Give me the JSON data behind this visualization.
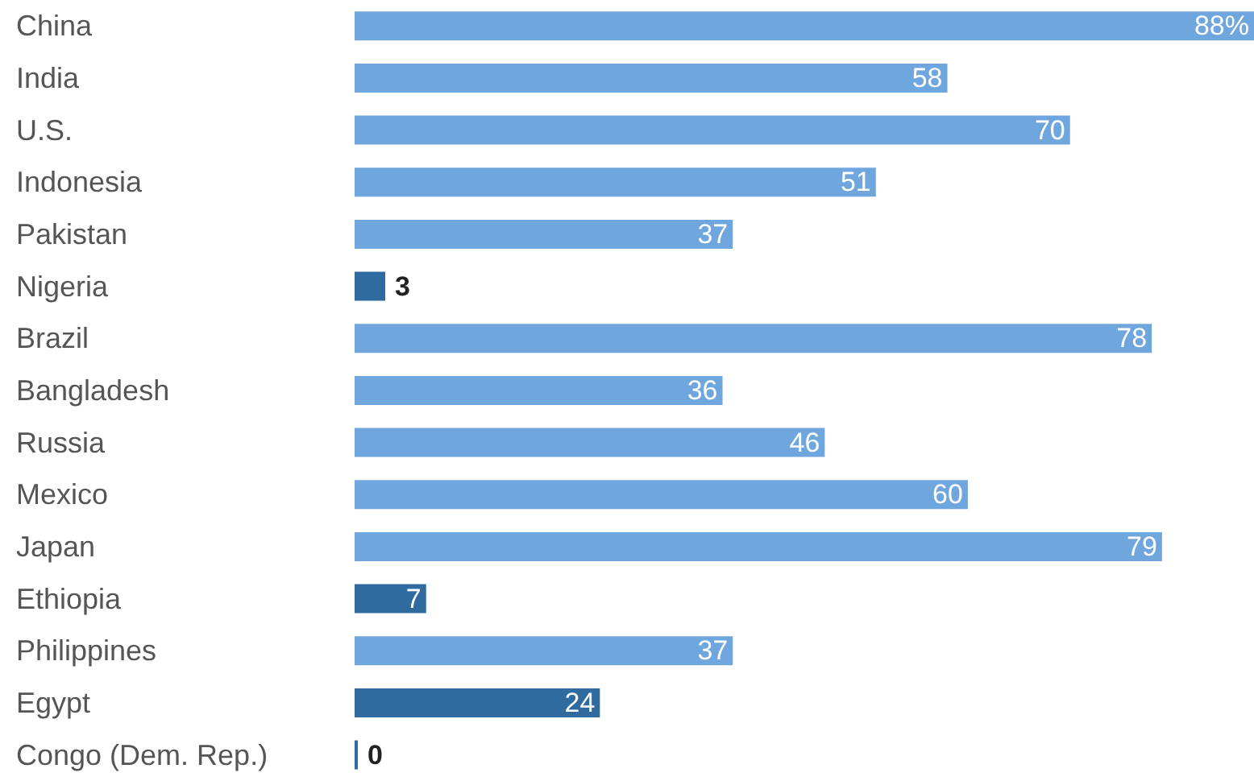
{
  "chart_data": {
    "type": "bar",
    "orientation": "horizontal",
    "categories": [
      "China",
      "India",
      "U.S.",
      "Indonesia",
      "Pakistan",
      "Nigeria",
      "Brazil",
      "Bangladesh",
      "Russia",
      "Mexico",
      "Japan",
      "Ethiopia",
      "Philippines",
      "Egypt",
      "Congo (Dem. Rep.)"
    ],
    "values": [
      88,
      58,
      70,
      51,
      37,
      3,
      78,
      36,
      46,
      60,
      79,
      7,
      37,
      24,
      0
    ],
    "value_labels": [
      "88%",
      "58",
      "70",
      "51",
      "37",
      "3",
      "78",
      "36",
      "46",
      "60",
      "79",
      "7",
      "37",
      "24",
      "0"
    ],
    "colors": [
      "#6fa6de",
      "#6fa6de",
      "#6fa6de",
      "#6fa6de",
      "#6fa6de",
      "#2f6b9f",
      "#6fa6de",
      "#6fa6de",
      "#6fa6de",
      "#6fa6de",
      "#6fa6de",
      "#2f6b9f",
      "#6fa6de",
      "#2f6b9f",
      "#2f6b9f"
    ]
  }
}
